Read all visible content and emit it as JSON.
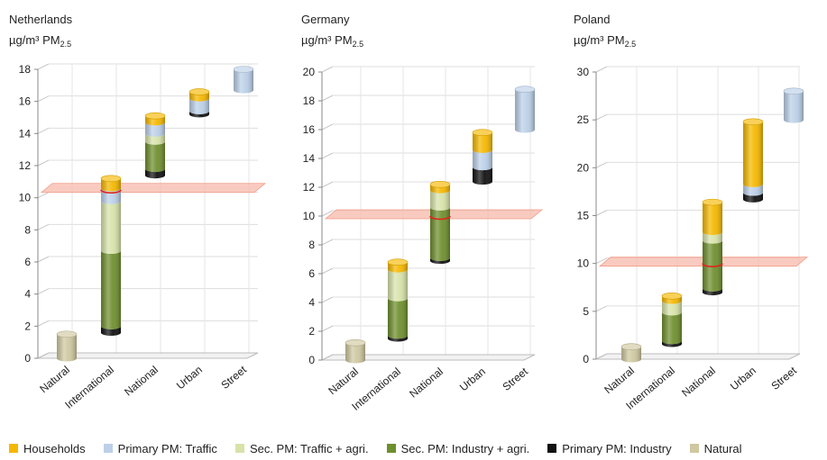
{
  "categories": [
    "Natural",
    "International",
    "National",
    "Urban",
    "Street"
  ],
  "components": [
    {
      "key": "industry_primary",
      "name": "Primary PM: Industry",
      "color": "#111111"
    },
    {
      "key": "sec_industry",
      "name": "Sec. PM: Industry + agri.",
      "color": "#6f8f2e"
    },
    {
      "key": "sec_traffic",
      "name": "Sec. PM: Traffic + agri.",
      "color": "#d7e3a9"
    },
    {
      "key": "traffic_primary",
      "name": "Primary PM: Traffic",
      "color": "#bcd0e8"
    },
    {
      "key": "households",
      "name": "Households",
      "color": "#f5b800"
    },
    {
      "key": "natural",
      "name": "Natural",
      "color": "#cfc8a0"
    }
  ],
  "legend_order": [
    "households",
    "traffic_primary",
    "sec_traffic",
    "sec_industry",
    "industry_primary",
    "natural"
  ],
  "chart_data": [
    {
      "type": "bar",
      "title": "Netherlands",
      "unit": "µg/m³ PM2.5",
      "unit_parts": {
        "pre": "µg/m³ PM",
        "sub": "2.5"
      },
      "ylim": [
        0,
        18
      ],
      "yticks": [
        0,
        2,
        4,
        6,
        8,
        10,
        12,
        14,
        16,
        18
      ],
      "threshold": 10.5,
      "segments": [
        [
          {
            "c": "natural",
            "from": 0,
            "to": 1.5
          }
        ],
        [
          {
            "c": "industry_primary",
            "from": 1.6,
            "to": 2.0
          },
          {
            "c": "sec_industry",
            "from": 2.0,
            "to": 6.7
          },
          {
            "c": "sec_traffic",
            "from": 6.7,
            "to": 9.8
          },
          {
            "c": "traffic_primary",
            "from": 9.8,
            "to": 10.6
          },
          {
            "c": "households",
            "from": 10.6,
            "to": 11.2
          }
        ],
        [
          {
            "c": "industry_primary",
            "from": 11.4,
            "to": 11.8
          },
          {
            "c": "sec_industry",
            "from": 11.8,
            "to": 13.5
          },
          {
            "c": "sec_traffic",
            "from": 13.5,
            "to": 14.0
          },
          {
            "c": "traffic_primary",
            "from": 14.0,
            "to": 14.7
          },
          {
            "c": "households",
            "from": 14.7,
            "to": 15.1
          }
        ],
        [
          {
            "c": "industry_primary",
            "from": 15.2,
            "to": 15.4
          },
          {
            "c": "traffic_primary",
            "from": 15.4,
            "to": 16.2
          },
          {
            "c": "households",
            "from": 16.2,
            "to": 16.6
          }
        ],
        [
          {
            "c": "traffic_primary",
            "from": 16.7,
            "to": 18.0
          }
        ]
      ]
    },
    {
      "type": "bar",
      "title": "Germany",
      "unit": "µg/m³ PM2.5",
      "unit_parts": {
        "pre": "µg/m³ PM",
        "sub": "2.5"
      },
      "ylim": [
        0,
        20
      ],
      "yticks": [
        0,
        2,
        4,
        6,
        8,
        10,
        12,
        14,
        16,
        18,
        20
      ],
      "threshold": 10,
      "segments": [
        [
          {
            "c": "natural",
            "from": 0,
            "to": 1.2
          }
        ],
        [
          {
            "c": "industry_primary",
            "from": 1.5,
            "to": 1.7
          },
          {
            "c": "sec_industry",
            "from": 1.7,
            "to": 4.3
          },
          {
            "c": "sec_traffic",
            "from": 4.3,
            "to": 6.3
          },
          {
            "c": "households",
            "from": 6.3,
            "to": 6.8
          }
        ],
        [
          {
            "c": "industry_primary",
            "from": 6.9,
            "to": 7.1
          },
          {
            "c": "sec_industry",
            "from": 7.1,
            "to": 10.6
          },
          {
            "c": "sec_traffic",
            "from": 10.6,
            "to": 11.8
          },
          {
            "c": "households",
            "from": 11.8,
            "to": 12.2
          }
        ],
        [
          {
            "c": "industry_primary",
            "from": 12.4,
            "to": 13.4
          },
          {
            "c": "traffic_primary",
            "from": 13.4,
            "to": 14.6
          },
          {
            "c": "households",
            "from": 14.6,
            "to": 15.8
          }
        ],
        [
          {
            "c": "traffic_primary",
            "from": 16.0,
            "to": 18.8
          }
        ]
      ]
    },
    {
      "type": "bar",
      "title": "Poland",
      "unit": "µg/m³ PM2.5",
      "unit_parts": {
        "pre": "µg/m³ PM",
        "sub": "2.5"
      },
      "ylim": [
        0,
        30
      ],
      "yticks": [
        0,
        5,
        10,
        15,
        20,
        25,
        30
      ],
      "threshold": 10,
      "segments": [
        [
          {
            "c": "natural",
            "from": 0,
            "to": 1.3
          }
        ],
        [
          {
            "c": "industry_primary",
            "from": 1.6,
            "to": 1.9
          },
          {
            "c": "sec_industry",
            "from": 1.9,
            "to": 4.9
          },
          {
            "c": "sec_traffic",
            "from": 4.9,
            "to": 6.1
          },
          {
            "c": "households",
            "from": 6.1,
            "to": 6.6
          }
        ],
        [
          {
            "c": "industry_primary",
            "from": 7.0,
            "to": 7.4
          },
          {
            "c": "sec_industry",
            "from": 7.4,
            "to": 12.4
          },
          {
            "c": "sec_traffic",
            "from": 12.4,
            "to": 13.3
          },
          {
            "c": "households",
            "from": 13.3,
            "to": 16.4
          }
        ],
        [
          {
            "c": "industry_primary",
            "from": 16.7,
            "to": 17.4
          },
          {
            "c": "traffic_primary",
            "from": 17.4,
            "to": 18.3
          },
          {
            "c": "households",
            "from": 18.3,
            "to": 24.8
          }
        ],
        [
          {
            "c": "traffic_primary",
            "from": 25.0,
            "to": 28.0
          }
        ]
      ]
    }
  ]
}
